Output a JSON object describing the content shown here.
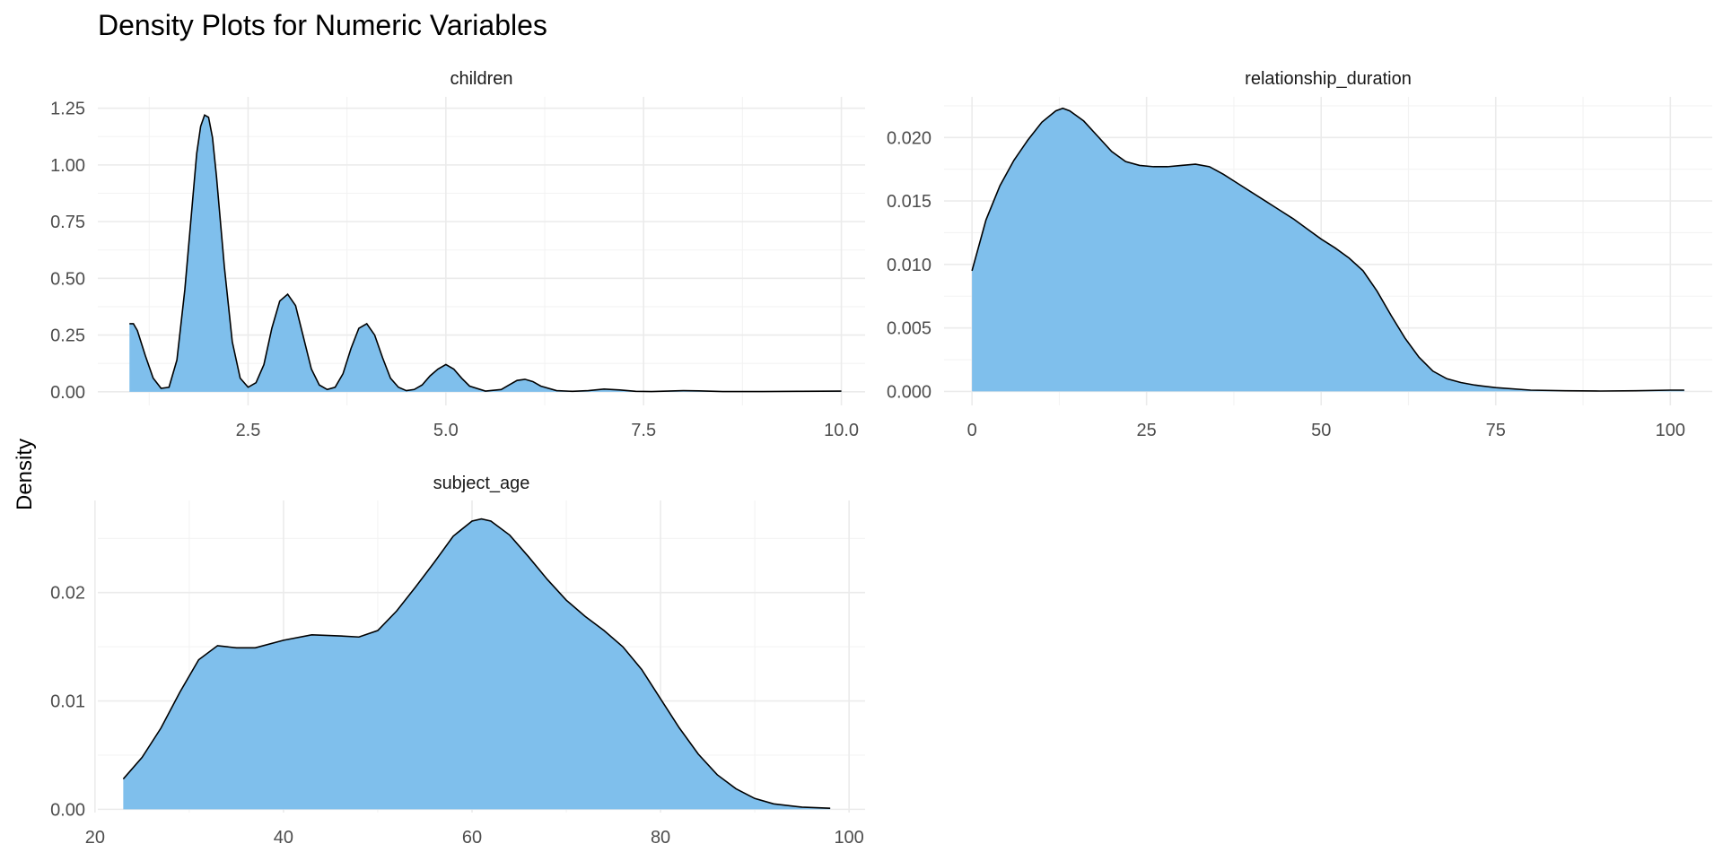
{
  "chart_data": {
    "type": "area",
    "title": "Density Plots for Numeric Variables",
    "ylabel": "Density",
    "fill_color": "#7fbfec",
    "line_color": "#000000",
    "grid": true,
    "panels": [
      {
        "name": "children",
        "xlim": [
          0.6,
          10.3
        ],
        "ylim": [
          -0.06,
          1.3
        ],
        "xticks": [
          2.5,
          5.0,
          7.5,
          10.0
        ],
        "xtick_labels": [
          "2.5",
          "5.0",
          "7.5",
          "10.0"
        ],
        "yticks": [
          0,
          0.25,
          0.5,
          0.75,
          1.0,
          1.25
        ],
        "ytick_labels": [
          "0.00",
          "0.25",
          "0.50",
          "0.75",
          "1.00",
          "1.25"
        ],
        "x": [
          1.0,
          1.05,
          1.1,
          1.2,
          1.3,
          1.4,
          1.5,
          1.6,
          1.7,
          1.8,
          1.85,
          1.9,
          1.95,
          2.0,
          2.05,
          2.1,
          2.2,
          2.3,
          2.4,
          2.5,
          2.6,
          2.7,
          2.8,
          2.9,
          3.0,
          3.1,
          3.2,
          3.3,
          3.4,
          3.5,
          3.6,
          3.7,
          3.8,
          3.9,
          4.0,
          4.1,
          4.2,
          4.3,
          4.4,
          4.5,
          4.6,
          4.7,
          4.8,
          4.9,
          5.0,
          5.1,
          5.2,
          5.3,
          5.5,
          5.7,
          5.8,
          5.9,
          6.0,
          6.1,
          6.2,
          6.4,
          6.6,
          6.8,
          7.0,
          7.2,
          7.4,
          7.6,
          7.8,
          8.0,
          8.2,
          8.5,
          9.0,
          9.5,
          10.0
        ],
        "y": [
          0.3,
          0.3,
          0.27,
          0.16,
          0.06,
          0.015,
          0.02,
          0.14,
          0.45,
          0.85,
          1.05,
          1.17,
          1.22,
          1.21,
          1.12,
          0.95,
          0.55,
          0.22,
          0.06,
          0.02,
          0.04,
          0.12,
          0.28,
          0.4,
          0.43,
          0.38,
          0.24,
          0.1,
          0.03,
          0.01,
          0.02,
          0.08,
          0.19,
          0.28,
          0.3,
          0.25,
          0.15,
          0.06,
          0.02,
          0.005,
          0.01,
          0.03,
          0.07,
          0.1,
          0.12,
          0.1,
          0.06,
          0.025,
          0.003,
          0.01,
          0.03,
          0.05,
          0.055,
          0.045,
          0.025,
          0.005,
          0.002,
          0.005,
          0.012,
          0.008,
          0.002,
          0.001,
          0.003,
          0.005,
          0.004,
          0.001,
          0.001,
          0.002,
          0.003
        ]
      },
      {
        "name": "relationship_duration",
        "xlim": [
          -4,
          106
        ],
        "ylim": [
          -0.0011,
          0.0232
        ],
        "xticks": [
          0,
          25,
          50,
          75,
          100
        ],
        "xtick_labels": [
          "0",
          "25",
          "50",
          "75",
          "100"
        ],
        "yticks": [
          0,
          0.005,
          0.01,
          0.015,
          0.02
        ],
        "ytick_labels": [
          "0.000",
          "0.005",
          "0.010",
          "0.015",
          "0.020"
        ],
        "x": [
          0,
          2,
          4,
          6,
          8,
          10,
          12,
          13,
          14,
          16,
          18,
          20,
          22,
          24,
          26,
          28,
          30,
          32,
          34,
          36,
          38,
          40,
          42,
          44,
          46,
          48,
          50,
          52,
          54,
          56,
          58,
          60,
          62,
          64,
          66,
          68,
          70,
          72,
          75,
          80,
          85,
          90,
          95,
          100,
          102
        ],
        "y": [
          0.0095,
          0.0135,
          0.0162,
          0.0182,
          0.0198,
          0.0212,
          0.0221,
          0.0223,
          0.0221,
          0.0213,
          0.0201,
          0.0189,
          0.0181,
          0.0178,
          0.0177,
          0.0177,
          0.0178,
          0.0179,
          0.0177,
          0.0171,
          0.0164,
          0.0157,
          0.015,
          0.0143,
          0.0136,
          0.0128,
          0.012,
          0.0113,
          0.0105,
          0.0095,
          0.0079,
          0.006,
          0.0042,
          0.0027,
          0.0016,
          0.001,
          0.0007,
          0.0005,
          0.0003,
          0.0001,
          5e-05,
          3e-05,
          5e-05,
          0.0001,
          0.0001
        ]
      },
      {
        "name": "subject_age",
        "xlim": [
          20.3,
          101.7
        ],
        "ylim": [
          -0.0003,
          0.0285
        ],
        "xticks": [
          20,
          40,
          60,
          80,
          100
        ],
        "xtick_labels": [
          "20",
          "40",
          "60",
          "80",
          "100"
        ],
        "yticks": [
          0,
          0.01,
          0.02
        ],
        "ytick_labels": [
          "0.00",
          "0.01",
          "0.02"
        ],
        "x": [
          23,
          25,
          27,
          29,
          31,
          33,
          35,
          37,
          40,
          43,
          46,
          48,
          50,
          52,
          54,
          56,
          58,
          60,
          61,
          62,
          64,
          66,
          68,
          70,
          72,
          74,
          76,
          78,
          80,
          82,
          84,
          86,
          88,
          90,
          92,
          95,
          98
        ],
        "y": [
          0.0028,
          0.0048,
          0.0075,
          0.0108,
          0.0138,
          0.0151,
          0.0149,
          0.0149,
          0.0156,
          0.0161,
          0.016,
          0.0159,
          0.0165,
          0.0183,
          0.0205,
          0.0228,
          0.0252,
          0.0266,
          0.0268,
          0.0266,
          0.0253,
          0.0233,
          0.0212,
          0.0193,
          0.0178,
          0.0165,
          0.015,
          0.0129,
          0.0102,
          0.0075,
          0.0051,
          0.0032,
          0.0019,
          0.001,
          0.0005,
          0.0002,
          0.0001
        ]
      }
    ]
  }
}
